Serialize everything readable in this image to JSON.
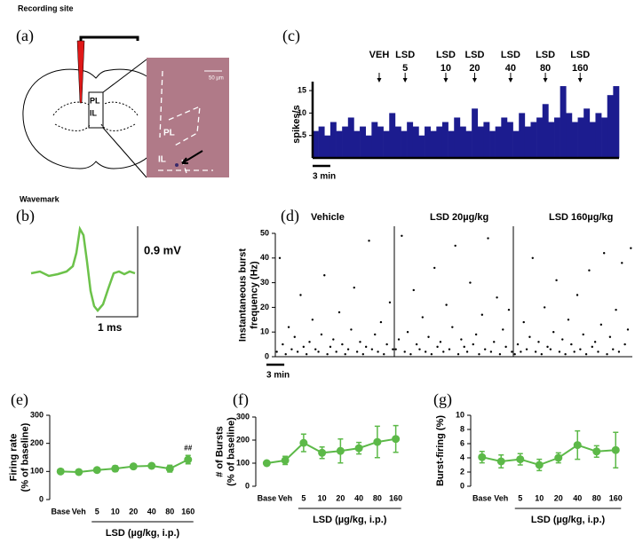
{
  "recording_site": {
    "panel": "(a)",
    "title": "Recording site",
    "inset_labels": [
      "PL",
      "IL"
    ],
    "image_labels": [
      "PL",
      "IL"
    ],
    "scale_label": "50 µm"
  },
  "wavemark": {
    "panel": "(b)",
    "title": "Wavemark",
    "voltage_label": "0.9 mV",
    "time_label": "1 ms"
  },
  "chart_data": [
    {
      "type": "histogram",
      "panel": "(c)",
      "ylabel": "spikes/s",
      "color": "#1c1c8f",
      "bins": [
        0,
        1,
        2,
        3,
        4,
        5,
        6,
        7,
        8,
        9,
        10,
        11,
        12,
        13,
        14,
        15,
        16,
        17,
        18,
        19,
        20,
        21,
        22,
        23,
        24,
        25,
        26,
        27,
        28,
        29,
        30,
        31,
        32,
        33,
        34,
        35,
        36,
        37,
        38,
        39,
        40,
        41,
        42,
        43,
        44,
        45,
        46,
        47,
        48,
        49,
        50,
        51,
        52
      ],
      "values": [
        6,
        7,
        5,
        8,
        6,
        7,
        9,
        6,
        7,
        5,
        8,
        7,
        6,
        10,
        7,
        6,
        8,
        7,
        5,
        7,
        6,
        7,
        8,
        6,
        9,
        7,
        6,
        11,
        7,
        8,
        6,
        7,
        9,
        8,
        6,
        10,
        7,
        8,
        9,
        12,
        8,
        9,
        16,
        10,
        8,
        9,
        11,
        8,
        10,
        9,
        14,
        16
      ],
      "xlim": [
        0,
        52
      ],
      "ylim": [
        0,
        17
      ],
      "yticks": [
        5,
        10,
        15
      ],
      "scalebar": {
        "length": 3,
        "label": "3 min"
      },
      "annotations": [
        {
          "lines": [
            "VEH"
          ],
          "x": 11.3
        },
        {
          "lines": [
            "LSD",
            "5"
          ],
          "x": 15.7
        },
        {
          "lines": [
            "LSD",
            "10"
          ],
          "x": 22.6
        },
        {
          "lines": [
            "LSD",
            "20"
          ],
          "x": 27.5
        },
        {
          "lines": [
            "LSD",
            "40"
          ],
          "x": 33.6
        },
        {
          "lines": [
            "LSD",
            "80"
          ],
          "x": 39.5
        },
        {
          "lines": [
            "LSD",
            "160"
          ],
          "x": 45.4
        }
      ]
    },
    {
      "type": "scatter",
      "panel": "(d)",
      "ylabel": [
        "Instantaneous burst",
        "frequency (Hz)"
      ],
      "color": "#000000",
      "xlim": [
        0,
        20
      ],
      "ylim": [
        0,
        50
      ],
      "yticks": [
        0,
        10,
        20,
        30,
        40,
        50
      ],
      "scalebar": {
        "length": 3,
        "label": "3 min"
      },
      "series": [
        {
          "name": "Vehicle",
          "x": [
            0.25,
            0.75,
            1.25,
            1.75,
            2.25,
            2.75,
            3.25,
            3.75,
            4.25,
            4.75,
            5.25,
            5.75,
            6.25,
            6.75,
            7.25,
            7.75,
            8.25,
            8.75,
            9.25,
            9.75,
            10.25,
            10.75,
            11.25,
            11.75,
            12.25,
            12.75,
            13.25,
            13.75,
            14.25,
            14.75,
            15.25,
            15.75,
            16.25,
            16.75,
            17.25,
            17.75,
            18.25,
            18.75,
            19.25,
            19.75
          ],
          "values": [
            2,
            40,
            5,
            1,
            12,
            3,
            8,
            2,
            25,
            4,
            1,
            6,
            15,
            3,
            2,
            9,
            33,
            1,
            4,
            7,
            2,
            18,
            5,
            1,
            3,
            11,
            28,
            2,
            6,
            1,
            4,
            47,
            3,
            9,
            2,
            14,
            1,
            5,
            22,
            3
          ]
        },
        {
          "name": "LSD 20µg/kg",
          "x": [
            0.25,
            0.75,
            1.25,
            1.75,
            2.25,
            2.75,
            3.25,
            3.75,
            4.25,
            4.75,
            5.25,
            5.75,
            6.25,
            6.75,
            7.25,
            7.75,
            8.25,
            8.75,
            9.25,
            9.75,
            10.25,
            10.75,
            11.25,
            11.75,
            12.25,
            12.75,
            13.25,
            13.75,
            14.25,
            14.75,
            15.25,
            15.75,
            16.25,
            16.75,
            17.25,
            17.75,
            18.25,
            18.75,
            19.25,
            19.75
          ],
          "values": [
            3,
            7,
            49,
            2,
            10,
            1,
            27,
            5,
            3,
            16,
            2,
            8,
            1,
            36,
            4,
            6,
            2,
            21,
            3,
            12,
            45,
            1,
            7,
            4,
            2,
            30,
            5,
            9,
            1,
            17,
            3,
            48,
            2,
            6,
            24,
            1,
            11,
            4,
            19,
            2
          ]
        },
        {
          "name": "LSD 160µg/kg",
          "x": [
            0.25,
            0.75,
            1.25,
            1.75,
            2.25,
            2.75,
            3.25,
            3.75,
            4.25,
            4.75,
            5.25,
            5.75,
            6.25,
            6.75,
            7.25,
            7.75,
            8.25,
            8.75,
            9.25,
            9.75,
            10.25,
            10.75,
            11.25,
            11.75,
            12.25,
            12.75,
            13.25,
            13.75,
            14.25,
            14.75,
            15.25,
            15.75,
            16.25,
            16.75,
            17.25,
            17.75,
            18.25,
            18.75,
            19.25,
            19.75
          ],
          "values": [
            1,
            5,
            2,
            14,
            3,
            8,
            40,
            2,
            6,
            1,
            20,
            4,
            3,
            10,
            31,
            2,
            7,
            1,
            15,
            5,
            2,
            25,
            3,
            9,
            1,
            35,
            4,
            6,
            2,
            13,
            42,
            1,
            8,
            3,
            19,
            2,
            38,
            5,
            11,
            44
          ]
        }
      ]
    },
    {
      "type": "line",
      "panel": "(e)",
      "ylabel": [
        "Firing rate",
        "(% of baseline)"
      ],
      "xlabel": "LSD (µg/kg, i.p.)",
      "color": "#5cb948",
      "categories": [
        "Base",
        "Veh",
        "5",
        "10",
        "20",
        "40",
        "80",
        "160"
      ],
      "values": [
        100,
        98,
        105,
        110,
        118,
        120,
        110,
        142
      ],
      "errors": [
        3,
        4,
        6,
        10,
        8,
        8,
        12,
        15
      ],
      "ylim": [
        0,
        300
      ],
      "yticks": [
        0,
        100,
        200,
        300
      ],
      "annotations": [
        {
          "text": "##",
          "x": "160"
        }
      ]
    },
    {
      "type": "line",
      "panel": "(f)",
      "ylabel": [
        "# of Bursts",
        "(% of baseline)"
      ],
      "xlabel": "LSD (µg/kg, i.p.)",
      "color": "#5cb948",
      "categories": [
        "Base",
        "Veh",
        "5",
        "10",
        "20",
        "40",
        "80",
        "160"
      ],
      "values": [
        100,
        112,
        188,
        145,
        153,
        165,
        192,
        205
      ],
      "errors": [
        5,
        18,
        38,
        25,
        52,
        25,
        68,
        58
      ],
      "ylim": [
        0,
        300
      ],
      "yticks": [
        0,
        100,
        200,
        300
      ]
    },
    {
      "type": "line",
      "panel": "(g)",
      "ylabel": [
        "Burst-firing (%)"
      ],
      "xlabel": "LSD (µg/kg, i.p.)",
      "color": "#5cb948",
      "categories": [
        "Base",
        "Veh",
        "5",
        "10",
        "20",
        "40",
        "80",
        "160"
      ],
      "values": [
        4.1,
        3.5,
        3.8,
        3.0,
        4.0,
        5.8,
        4.9,
        5.1
      ],
      "errors": [
        0.8,
        0.9,
        0.8,
        0.8,
        0.7,
        2.0,
        0.8,
        2.5
      ],
      "ylim": [
        0,
        10
      ],
      "yticks": [
        0,
        2,
        4,
        6,
        8,
        10
      ]
    }
  ]
}
